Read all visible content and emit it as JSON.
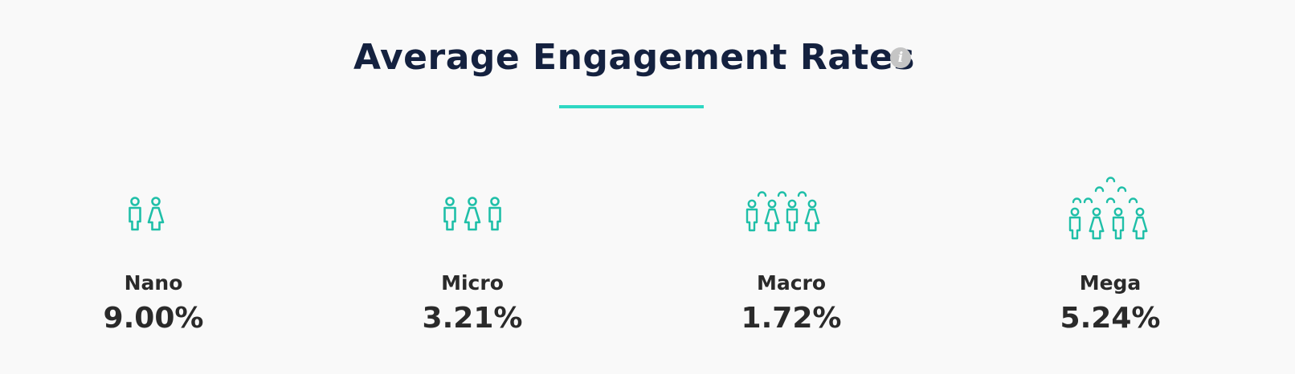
{
  "header": {
    "title": "Average Engagement Rates",
    "info_icon": "info-icon",
    "info_glyph": "i"
  },
  "colors": {
    "accent": "#2ed8c3",
    "icon": "#1fbfa8",
    "title": "#14213f",
    "text": "#2a2a2a",
    "info": "#c5c5c5",
    "background": "#f9f9f9"
  },
  "tiers": [
    {
      "label": "Nano",
      "value": "9.00%",
      "icon": "two-people-icon"
    },
    {
      "label": "Micro",
      "value": "3.21%",
      "icon": "three-people-icon"
    },
    {
      "label": "Macro",
      "value": "1.72%",
      "icon": "small-crowd-icon"
    },
    {
      "label": "Mega",
      "value": "5.24%",
      "icon": "large-crowd-icon"
    }
  ]
}
